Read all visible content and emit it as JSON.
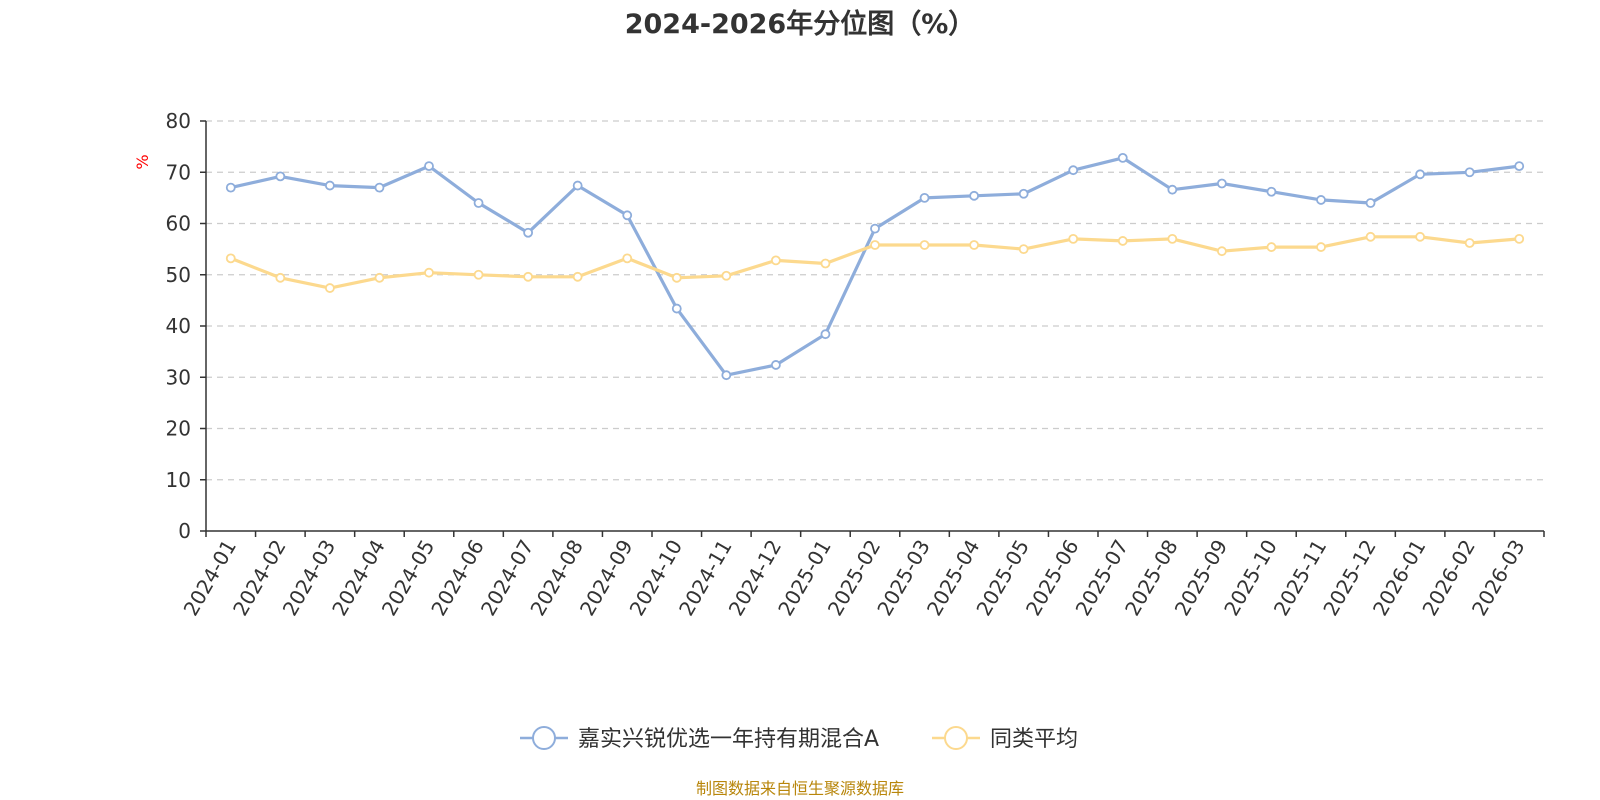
{
  "colors": {
    "series_a": "#8eaddb",
    "series_b": "#fcd98e",
    "unit": "#ff0000",
    "source": "#b8860b",
    "grid": "#cccccc",
    "axis": "#333333"
  },
  "chart_data": {
    "type": "line",
    "title": "2024-2026年分位图（%）",
    "ylabel": "%",
    "ylim": [
      0,
      80
    ],
    "yticks": [
      "0",
      "10",
      "20",
      "30",
      "40",
      "50",
      "60",
      "70",
      "80"
    ],
    "grid": "horizontal dashed",
    "legend_position": "bottom",
    "categories": [
      "2024-01",
      "2024-02",
      "2024-03",
      "2024-04",
      "2024-05",
      "2024-06",
      "2024-07",
      "2024-08",
      "2024-09",
      "2024-10",
      "2024-11",
      "2024-12",
      "2025-01",
      "2025-02",
      "2025-03",
      "2025-04",
      "2025-05",
      "2025-06",
      "2025-07",
      "2025-08",
      "2025-09",
      "2025-10",
      "2025-11",
      "2025-12",
      "2026-01",
      "2026-02",
      "2026-03"
    ],
    "series": [
      {
        "name": "嘉实兴锐优选一年持有期混合A",
        "values": [
          67.0,
          69.2,
          67.4,
          67.0,
          71.2,
          64.0,
          58.2,
          67.4,
          61.6,
          43.4,
          30.4,
          32.4,
          38.4,
          59.0,
          65.0,
          65.4,
          65.8,
          70.4,
          72.8,
          66.6,
          67.8,
          66.2,
          64.6,
          64.0,
          69.6,
          70.0,
          71.2
        ]
      },
      {
        "name": "同类平均",
        "values": [
          53.2,
          49.4,
          47.4,
          49.4,
          50.4,
          50.0,
          49.6,
          49.6,
          53.2,
          49.4,
          49.8,
          52.8,
          52.2,
          55.8,
          55.8,
          55.8,
          55.0,
          57.0,
          56.6,
          57.0,
          54.6,
          55.4,
          55.4,
          57.4,
          57.4,
          56.2,
          57.0
        ]
      }
    ]
  },
  "footer": {
    "source_text": "制图数据来自恒生聚源数据库"
  }
}
